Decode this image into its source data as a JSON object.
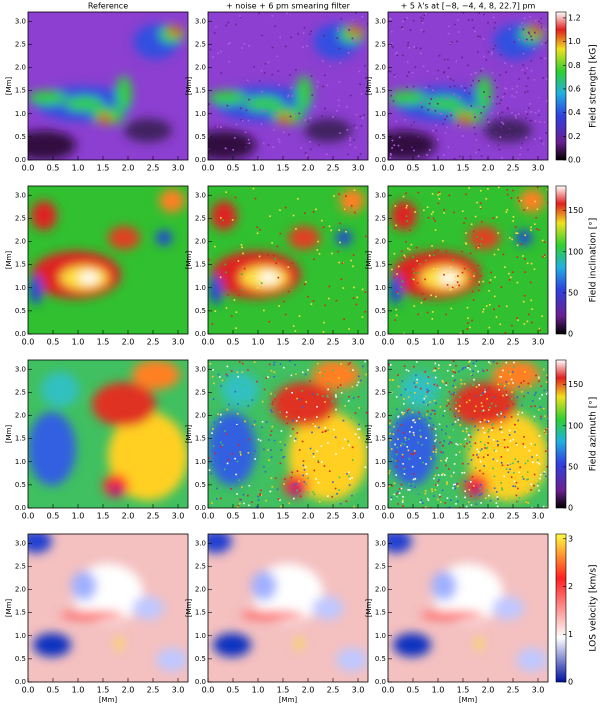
{
  "column_titles": [
    "Reference",
    "+ noise + 6 pm smearing filter",
    "+ 5 λ's at [−8, −4, 4, 8, 22.7] pm"
  ],
  "axis_label": "[Mm]",
  "axis_lim": [
    0,
    3.2
  ],
  "axis_ticks": [
    {
      "value": 0,
      "label": "0.0"
    },
    {
      "value": 0.5,
      "label": "0.5"
    },
    {
      "value": 1,
      "label": "1.0"
    },
    {
      "value": 1.5,
      "label": "1.5"
    },
    {
      "value": 2,
      "label": "2.0"
    },
    {
      "value": 2.5,
      "label": "2.5"
    },
    {
      "value": 3,
      "label": "3.0"
    }
  ],
  "rows": [
    {
      "colorbar_label": "Field strength [kG]",
      "colorbar_lim": [
        0,
        1.25
      ],
      "colorbar_ticks": [
        {
          "value": 0,
          "label": "0.0"
        },
        {
          "value": 0.2,
          "label": "0.2"
        },
        {
          "value": 0.4,
          "label": "0.4"
        },
        {
          "value": 0.6,
          "label": "0.6"
        },
        {
          "value": 0.8,
          "label": "0.8"
        },
        {
          "value": 1,
          "label": "1.0"
        },
        {
          "value": 1.2,
          "label": "1.2"
        }
      ]
    },
    {
      "colorbar_label": "Field inclination [°]",
      "colorbar_lim": [
        0,
        180
      ],
      "colorbar_ticks": [
        0,
        50,
        100,
        150
      ]
    },
    {
      "colorbar_label": "Field azimuth [°]",
      "colorbar_lim": [
        0,
        180
      ],
      "colorbar_ticks": [
        0,
        50,
        100,
        150
      ]
    },
    {
      "colorbar_label": "LOS velocity [km/s]",
      "colorbar_lim": [
        0,
        3.1
      ],
      "colorbar_ticks": [
        0,
        1,
        2,
        3
      ]
    }
  ]
}
